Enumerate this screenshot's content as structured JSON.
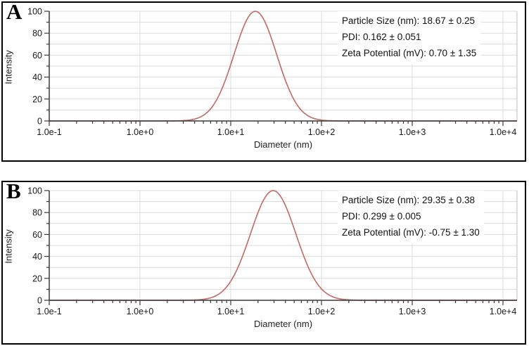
{
  "figure": {
    "description": "Dynamic light scattering intensity size distributions for two nanoparticle samples",
    "background_color": "#ffffff",
    "panel_border_color": "#000000"
  },
  "colors": {
    "curve": "#c4706b",
    "axis": "#3a3a3a",
    "gridline": "#dcdcdc",
    "plot_edge": "#c0c0c0",
    "text": "#1a1a1a"
  },
  "panels": [
    {
      "label": "A",
      "annotation": {
        "line1": "Particle Size (nm): 18.67 ± 0.25",
        "line2": "PDI: 0.162 ± 0.051",
        "line3": "Zeta Potential (mV): 0.70 ± 1.35"
      }
    },
    {
      "label": "B",
      "annotation": {
        "line1": "Particle Size (nm): 29.35 ± 0.38",
        "line2": "PDI: 0.299 ± 0.005",
        "line3": "Zeta Potential (mV): -0.75 ± 1.30"
      }
    }
  ],
  "chart_data": [
    {
      "type": "line",
      "panel": "A",
      "title": "",
      "xlabel": "Diameter (nm)",
      "ylabel": "Intensity",
      "x_scale": "log10",
      "xlim_log10": [
        -1,
        4.155
      ],
      "ylim": [
        0,
        100
      ],
      "x_tick_log10": [
        -1,
        0,
        1,
        2,
        3,
        4
      ],
      "x_tick_labels": [
        "1.0e-1",
        "1.0e+0",
        "1.0e+1",
        "1.0e+2",
        "1.0e+3",
        "1.0e+4"
      ],
      "y_ticks": [
        0,
        20,
        40,
        60,
        80,
        100
      ],
      "y_minor_ticks": [
        10,
        30,
        50,
        70,
        90
      ],
      "grid": "on",
      "legend": "none",
      "series": [
        {
          "name": "intensity-distribution",
          "shape": "lognormal-gaussian",
          "peak_nm": 18.67,
          "sigma_log10": 0.235,
          "peak_intensity": 100,
          "sample_x_nm": [
            3,
            5,
            8,
            10,
            15,
            18.67,
            25,
            40,
            60,
            100
          ],
          "sample_y": [
            0.3,
            5.2,
            29.3,
            51.4,
            92.2,
            100,
            86.4,
            37.1,
            9.7,
            0.8
          ]
        }
      ]
    },
    {
      "type": "line",
      "panel": "B",
      "title": "",
      "xlabel": "Diameter (nm)",
      "ylabel": "Intensity",
      "x_scale": "log10",
      "xlim_log10": [
        -1,
        4.155
      ],
      "ylim": [
        0,
        100
      ],
      "x_tick_log10": [
        -1,
        0,
        1,
        2,
        3,
        4
      ],
      "x_tick_labels": [
        "1.0e-1",
        "1.0e+0",
        "1.0e+1",
        "1.0e+2",
        "1.0e+3",
        "1.0e+4"
      ],
      "y_ticks": [
        0,
        20,
        40,
        60,
        80,
        100
      ],
      "y_minor_ticks": [
        10,
        30,
        50,
        70,
        90
      ],
      "grid": "on",
      "legend": "none",
      "series": [
        {
          "name": "intensity-distribution",
          "shape": "lognormal-gaussian",
          "peak_nm": 29.35,
          "sigma_log10": 0.25,
          "peak_intensity": 100,
          "sample_x_nm": [
            5,
            10,
            15,
            20,
            29.35,
            40,
            60,
            100,
            150
          ],
          "sample_y": [
            0.9,
            17.4,
            50.7,
            80.1,
            100,
            86.6,
            46.3,
            10.3,
            1.8
          ]
        }
      ]
    }
  ]
}
